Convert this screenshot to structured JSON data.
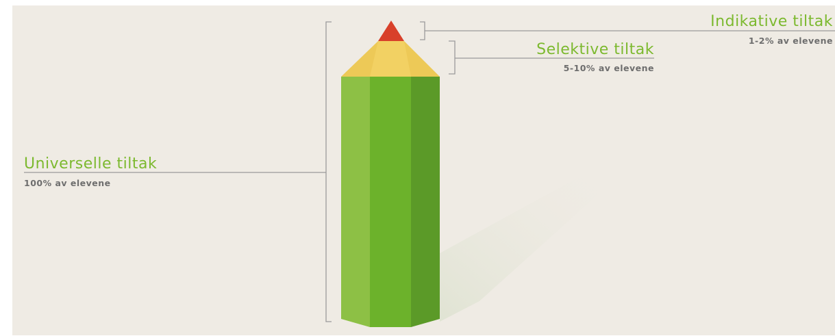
{
  "tiers": {
    "indicative": {
      "title": "Indikative tiltak",
      "subtitle": "1-2% av elevene"
    },
    "selective": {
      "title": "Selektive tiltak",
      "subtitle": "5-10% av elevene"
    },
    "universal": {
      "title": "Universelle tiltak",
      "subtitle": "100% av elevene"
    }
  }
}
